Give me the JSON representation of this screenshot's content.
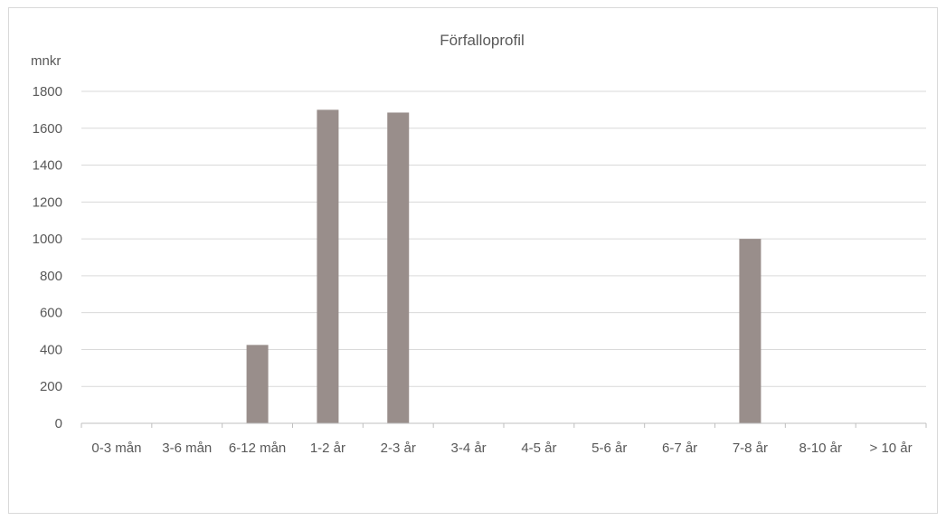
{
  "chart_data": {
    "type": "bar",
    "title": "Förfalloprofil",
    "ylabel": "mnkr",
    "xlabel": "",
    "categories": [
      "0-3 mån",
      "3-6 mån",
      "6-12 mån",
      "1-2 år",
      "2-3 år",
      "3-4 år",
      "4-5 år",
      "5-6 år",
      "6-7 år",
      "7-8 år",
      "8-10 år",
      "> 10 år"
    ],
    "values": [
      0,
      0,
      425,
      1700,
      1685,
      0,
      0,
      0,
      0,
      1000,
      0,
      0
    ],
    "ylim": [
      0,
      1800
    ],
    "yticks": [
      0,
      200,
      400,
      600,
      800,
      1000,
      1200,
      1400,
      1600,
      1800
    ],
    "grid": true,
    "legend": "none",
    "bar_color": "#998e8b"
  }
}
